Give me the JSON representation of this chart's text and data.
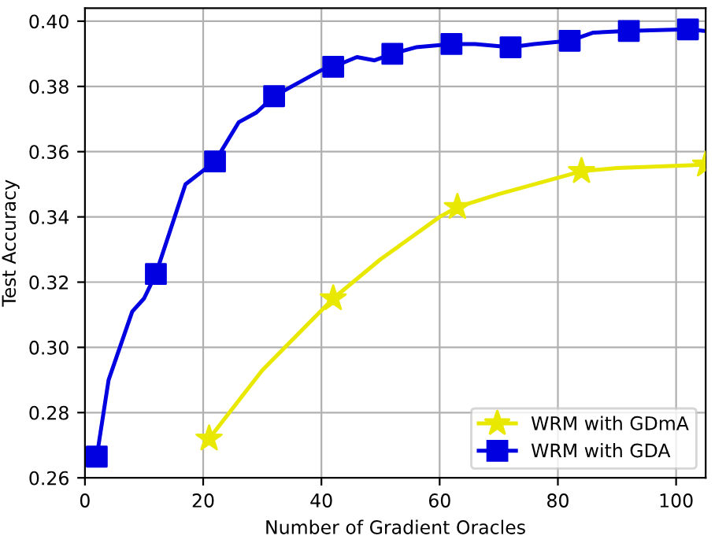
{
  "chart_data": {
    "type": "line",
    "xlabel": "Number of Gradient Oracles",
    "ylabel": "Test Accuracy",
    "xlim": [
      0,
      105
    ],
    "ylim": [
      0.26,
      0.404
    ],
    "xticks": [
      0,
      20,
      40,
      60,
      80,
      100
    ],
    "yticks": [
      {
        "value": 0.26,
        "label": "0.26"
      },
      {
        "value": 0.28,
        "label": "0.28"
      },
      {
        "value": 0.3,
        "label": "0.30"
      },
      {
        "value": 0.32,
        "label": "0.32"
      },
      {
        "value": 0.34,
        "label": "0.34"
      },
      {
        "value": 0.36,
        "label": "0.36"
      },
      {
        "value": 0.38,
        "label": "0.38"
      },
      {
        "value": 0.4,
        "label": "0.40"
      }
    ],
    "grid": true,
    "legend": "bottom right",
    "series": [
      {
        "color": "#e8e800",
        "x": [
          21,
          30,
          42,
          50,
          60,
          63,
          70,
          84,
          90,
          105
        ],
        "values": [
          0.272,
          0.293,
          0.315,
          0.327,
          0.34,
          0.343,
          0.347,
          0.354,
          0.355,
          0.356
        ]
      },
      {
        "color": "#0000e0",
        "x": [
          2,
          4,
          8,
          10,
          12,
          17,
          22,
          26,
          29,
          32,
          36,
          40,
          42,
          46,
          49,
          52,
          56,
          62,
          66,
          72,
          76,
          82,
          86,
          92,
          102,
          105
        ],
        "values": [
          0.2665,
          0.29,
          0.311,
          0.315,
          0.3225,
          0.35,
          0.357,
          0.369,
          0.372,
          0.377,
          0.381,
          0.385,
          0.386,
          0.389,
          0.388,
          0.39,
          0.392,
          0.393,
          0.393,
          0.392,
          0.393,
          0.394,
          0.3965,
          0.397,
          0.3975,
          0.397
        ]
      },
      {
        "name": "WRM with GDmA",
        "type": "scatter",
        "color": "#e8e800",
        "marker": "star",
        "x": [
          21,
          42,
          63,
          84,
          105
        ],
        "values": [
          0.272,
          0.315,
          0.343,
          0.354,
          0.356
        ]
      },
      {
        "name": "WRM with GDA",
        "type": "scatter",
        "color": "#0000e0",
        "marker": "square",
        "x": [
          2,
          12,
          22,
          32,
          42,
          52,
          62,
          72,
          82,
          92,
          102
        ],
        "values": [
          0.2665,
          0.3225,
          0.357,
          0.377,
          0.386,
          0.39,
          0.393,
          0.392,
          0.394,
          0.397,
          0.3975
        ]
      }
    ]
  }
}
